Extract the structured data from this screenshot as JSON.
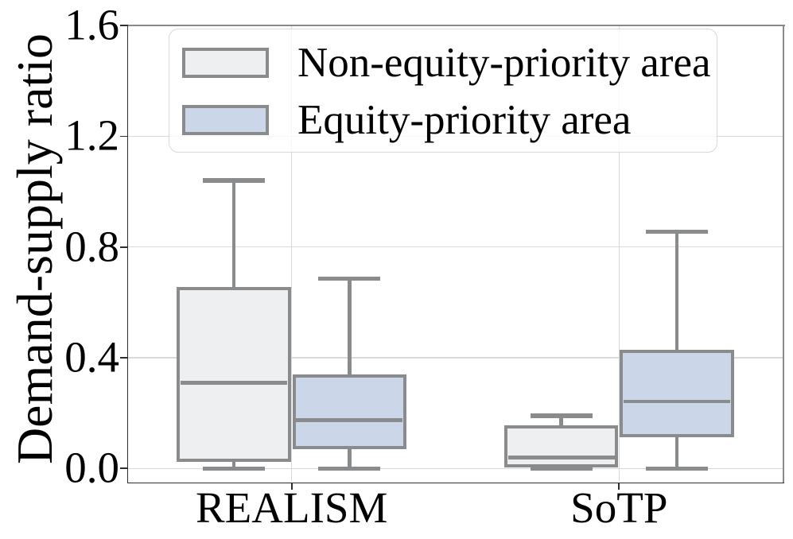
{
  "figure": {
    "ylabel": "Demand-supply ratio"
  },
  "chart_data": {
    "type": "boxplot",
    "title": "",
    "xlabel": "",
    "ylabel": "Demand-supply ratio",
    "categories": [
      "REALISM",
      "SoTP"
    ],
    "series": [
      {
        "name": "Non-equity-priority area",
        "fill": "#edeff1",
        "boxes": [
          {
            "whislo": 0.0,
            "q1": 0.025,
            "med": 0.31,
            "q3": 0.655,
            "whishi": 1.04
          },
          {
            "whislo": 0.0,
            "q1": 0.005,
            "med": 0.04,
            "q3": 0.155,
            "whishi": 0.19
          }
        ]
      },
      {
        "name": "Equity-priority area",
        "fill": "#cbd6e8",
        "boxes": [
          {
            "whislo": 0.0,
            "q1": 0.07,
            "med": 0.175,
            "q3": 0.34,
            "whishi": 0.685
          },
          {
            "whislo": 0.0,
            "q1": 0.113,
            "med": 0.242,
            "q3": 0.43,
            "whishi": 0.855
          }
        ]
      }
    ],
    "yticks": {
      "values": [
        0.0,
        0.4,
        0.8,
        1.2,
        1.6
      ],
      "labels": [
        "0.0",
        "0.4",
        "0.8",
        "1.2",
        "1.6"
      ]
    },
    "ylim": [
      -0.05,
      1.6
    ],
    "grid": true,
    "legend_position": "upper left",
    "colors": {
      "box_edge": "#898b8d",
      "grid": "#d9d9d9",
      "spine_dark": "#2e2e2e",
      "spine_light": "#8a8a8a",
      "non_equity_fill": "#edeff1",
      "equity_fill": "#cbd6e8"
    }
  }
}
